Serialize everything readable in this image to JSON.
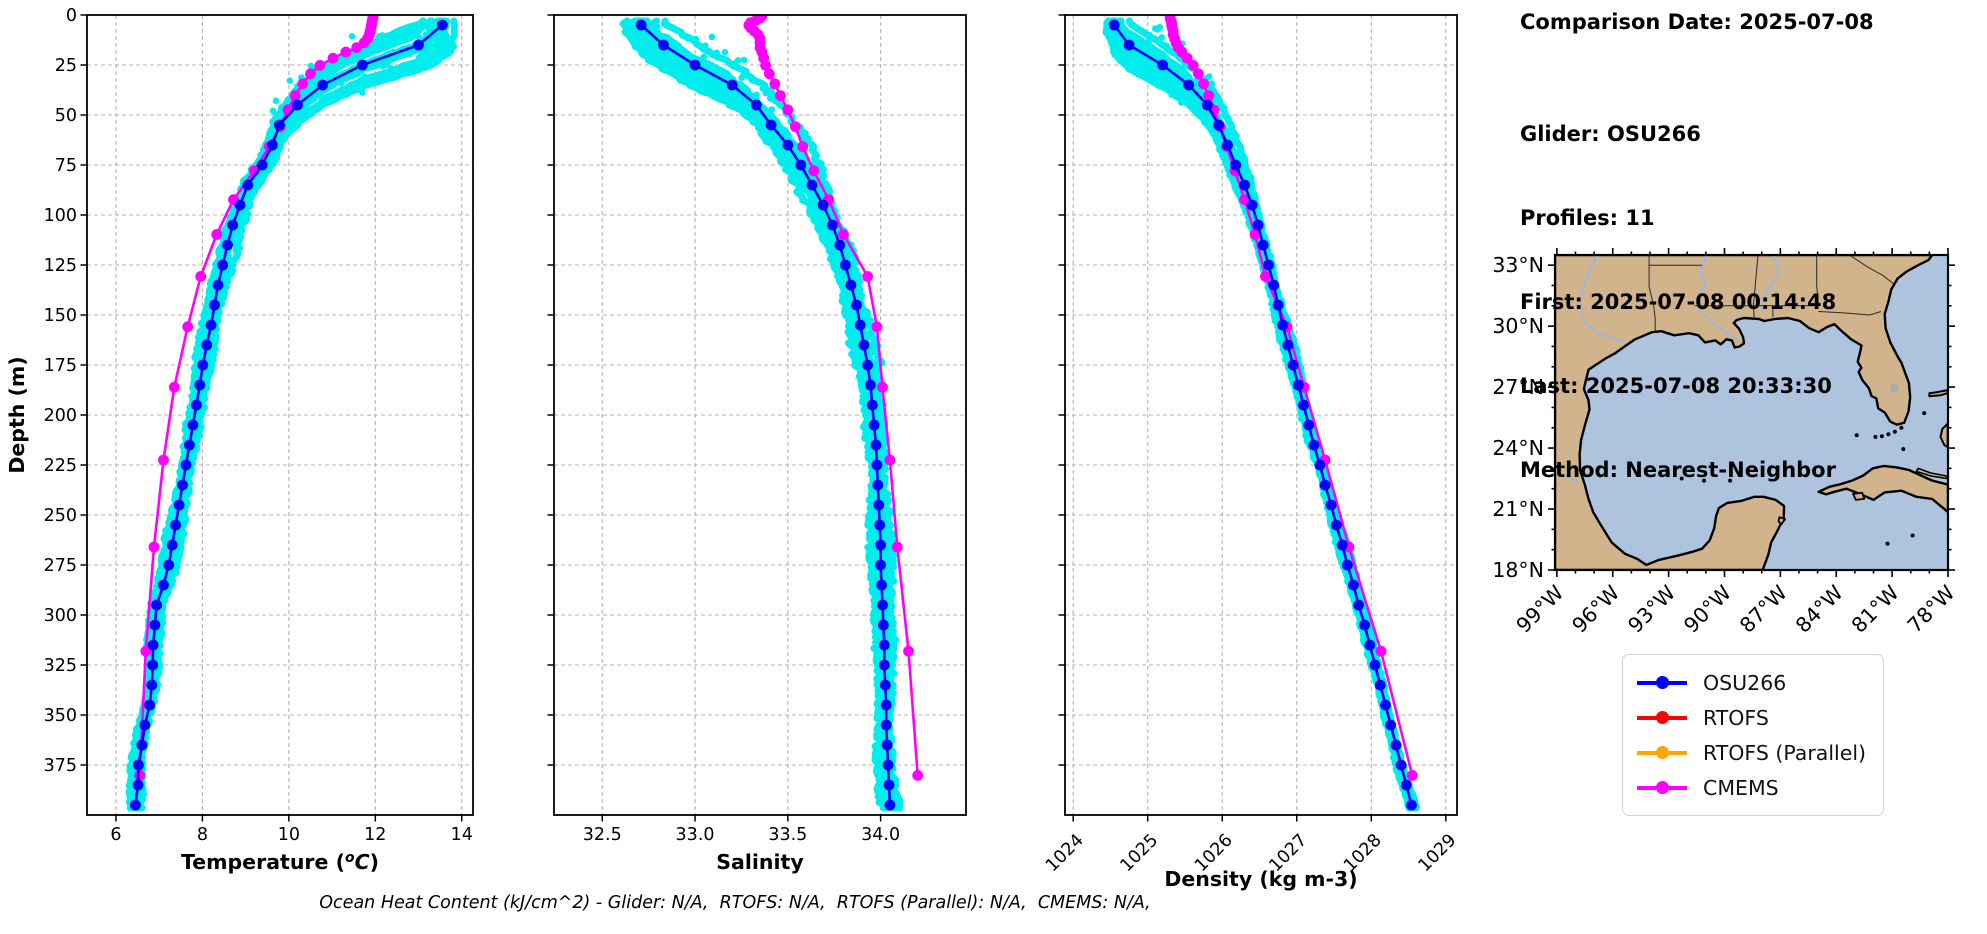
{
  "info_panel": {
    "title": "Comparison Date: 2025-07-08",
    "lines": [
      "Glider: OSU266",
      "Profiles: 11",
      "First: 2025-07-08 00:14:48",
      "Last: 2025-07-08 20:33:30",
      "Method: Nearest-Neighbor"
    ]
  },
  "caption": "Ocean Heat Content (kJ/cm^2) - Glider: N/A,  RTOFS: N/A,  RTOFS (Parallel): N/A,  CMEMS: N/A,",
  "legend": {
    "items": [
      {
        "label": "OSU266",
        "color": "#0000ff"
      },
      {
        "label": "RTOFS",
        "color": "#ff0000"
      },
      {
        "label": "RTOFS (Parallel)",
        "color": "#ffa500"
      },
      {
        "label": "CMEMS",
        "color": "#ff00ff"
      }
    ]
  },
  "colors": {
    "glider_line": "#0000ff",
    "cmems_line": "#ff00ff",
    "raw_scatter": "#00eded",
    "grid": "#b3b3b3",
    "frame": "#000000"
  },
  "chart_data": [
    {
      "type": "scatter",
      "title": "",
      "xlabel": "Temperature (°C)",
      "xlabel_render": {
        "prefix": "Temperature (",
        "sup": "o",
        "italic": "C",
        "suffix": ")"
      },
      "ylabel": "Depth (m)",
      "xlim": [
        5.33,
        14.26
      ],
      "ylim": [
        0,
        400
      ],
      "y_inverted": true,
      "grid": true,
      "xticks": [
        6,
        8,
        10,
        12,
        14
      ],
      "xtick_labels": [
        "6",
        "8",
        "10",
        "12",
        "14"
      ],
      "yticks": [
        0,
        25,
        50,
        75,
        100,
        125,
        150,
        175,
        200,
        225,
        250,
        275,
        300,
        325,
        350,
        375
      ],
      "show_ytick_labels": true,
      "xtick_rotation": 0,
      "series": [
        {
          "name": "OSU266 (binned)",
          "color": "#0000ff",
          "marker": true,
          "depths": [
            5,
            15,
            25,
            35,
            45,
            55,
            65,
            75,
            85,
            95,
            105,
            115,
            125,
            135,
            145,
            155,
            165,
            175,
            185,
            195,
            205,
            215,
            225,
            235,
            245,
            255,
            265,
            275,
            285,
            295,
            305,
            315,
            325,
            335,
            345,
            355,
            365,
            375,
            385,
            395
          ],
          "values": [
            13.55,
            13.0,
            11.7,
            10.78,
            10.2,
            9.78,
            9.62,
            9.38,
            9.05,
            8.87,
            8.7,
            8.58,
            8.47,
            8.36,
            8.28,
            8.2,
            8.1,
            8.01,
            7.94,
            7.86,
            7.78,
            7.7,
            7.62,
            7.54,
            7.46,
            7.38,
            7.3,
            7.22,
            7.1,
            6.94,
            6.9,
            6.86,
            6.85,
            6.83,
            6.78,
            6.67,
            6.6,
            6.52,
            6.51,
            6.45
          ]
        },
        {
          "name": "CMEMS",
          "color": "#ff00ff",
          "marker": true,
          "depths": [
            0.5,
            1.5,
            2.6,
            3.8,
            5.1,
            6.4,
            8.1,
            9.8,
            11.8,
            13.9,
            16.3,
            18.5,
            21.6,
            25.2,
            29.4,
            34.4,
            40.3,
            47.4,
            55.8,
            65.8,
            77.9,
            92.3,
            109.7,
            130.7,
            155.9,
            186.1,
            222.5,
            266.0,
            318.1,
            380.2
          ],
          "values": [
            11.95,
            11.94,
            11.93,
            11.92,
            11.91,
            11.9,
            11.88,
            11.86,
            11.82,
            11.74,
            11.57,
            11.32,
            11.02,
            10.72,
            10.5,
            10.32,
            10.15,
            9.98,
            9.8,
            9.55,
            9.2,
            8.72,
            8.33,
            7.96,
            7.66,
            7.35,
            7.1,
            6.88,
            6.69,
            6.55
          ]
        },
        {
          "name": "Glider raw scatter",
          "color": "#00eded",
          "marker": false,
          "derived_from": "OSU266 (binned)",
          "profiles": 11,
          "jitter_wiggle": 0.14,
          "jitter_bias": 0.16,
          "stray_dots": 64
        }
      ]
    },
    {
      "type": "scatter",
      "title": "",
      "xlabel": "Salinity",
      "ylabel": "",
      "xlim": [
        32.24,
        34.46
      ],
      "ylim": [
        0,
        400
      ],
      "y_inverted": true,
      "grid": true,
      "xticks": [
        32.5,
        33.0,
        33.5,
        34.0
      ],
      "xtick_labels": [
        "32.5",
        "33.0",
        "33.5",
        "34.0"
      ],
      "yticks": [
        0,
        25,
        50,
        75,
        100,
        125,
        150,
        175,
        200,
        225,
        250,
        275,
        300,
        325,
        350,
        375
      ],
      "show_ytick_labels": false,
      "xtick_rotation": 0,
      "series": [
        {
          "name": "OSU266 (binned)",
          "color": "#0000ff",
          "marker": true,
          "depths": [
            5,
            15,
            25,
            35,
            45,
            55,
            65,
            75,
            85,
            95,
            105,
            115,
            125,
            135,
            145,
            155,
            165,
            175,
            185,
            195,
            205,
            215,
            225,
            235,
            245,
            255,
            265,
            275,
            285,
            295,
            305,
            315,
            325,
            335,
            345,
            355,
            365,
            375,
            385,
            395
          ],
          "values": [
            32.71,
            32.83,
            33.0,
            33.2,
            33.33,
            33.41,
            33.5,
            33.57,
            33.63,
            33.69,
            33.74,
            33.78,
            33.81,
            33.84,
            33.87,
            33.89,
            33.91,
            33.93,
            33.945,
            33.955,
            33.965,
            33.975,
            33.98,
            33.985,
            33.99,
            33.995,
            34.0,
            34.0,
            34.005,
            34.01,
            34.015,
            34.02,
            34.02,
            34.025,
            34.03,
            34.03,
            34.035,
            34.04,
            34.045,
            34.05
          ]
        },
        {
          "name": "CMEMS",
          "color": "#ff00ff",
          "marker": true,
          "depths": [
            0.5,
            1.5,
            2.6,
            3.8,
            5.1,
            6.4,
            8.1,
            9.8,
            11.8,
            13.9,
            16.3,
            18.5,
            21.6,
            25.2,
            29.4,
            34.4,
            40.3,
            47.4,
            55.8,
            65.8,
            77.9,
            92.3,
            109.7,
            130.7,
            155.9,
            186.1,
            222.5,
            266.0,
            318.1,
            380.2
          ],
          "values": [
            33.36,
            33.35,
            33.33,
            33.3,
            33.29,
            33.3,
            33.32,
            33.34,
            33.35,
            33.35,
            33.35,
            33.36,
            33.37,
            33.38,
            33.4,
            33.43,
            33.46,
            33.5,
            33.54,
            33.58,
            33.64,
            33.72,
            33.8,
            33.93,
            33.98,
            34.01,
            34.05,
            34.09,
            34.15,
            34.2
          ]
        },
        {
          "name": "Glider raw scatter",
          "color": "#00eded",
          "marker": false,
          "derived_from": "OSU266 (binned)",
          "profiles": 11,
          "jitter_wiggle": 0.045,
          "jitter_bias": 0.05,
          "stray_dots": 55
        }
      ]
    },
    {
      "type": "scatter",
      "title": "",
      "xlabel": "Density (kg m-3)",
      "ylabel": "",
      "xlim": [
        1023.89,
        1029.15
      ],
      "ylim": [
        0,
        400
      ],
      "y_inverted": true,
      "grid": true,
      "xticks": [
        1024,
        1025,
        1026,
        1027,
        1028,
        1029
      ],
      "xtick_labels": [
        "1024",
        "1025",
        "1026",
        "1027",
        "1028",
        "1029"
      ],
      "yticks": [
        0,
        25,
        50,
        75,
        100,
        125,
        150,
        175,
        200,
        225,
        250,
        275,
        300,
        325,
        350,
        375
      ],
      "show_ytick_labels": false,
      "xtick_rotation": 45,
      "series": [
        {
          "name": "OSU266 (binned)",
          "color": "#0000ff",
          "marker": true,
          "depths": [
            5,
            15,
            25,
            35,
            45,
            55,
            65,
            75,
            85,
            95,
            105,
            115,
            125,
            135,
            145,
            155,
            165,
            175,
            185,
            195,
            205,
            215,
            225,
            235,
            245,
            255,
            265,
            275,
            285,
            295,
            305,
            315,
            325,
            335,
            345,
            355,
            365,
            375,
            385,
            395
          ],
          "values": [
            1024.55,
            1024.75,
            1025.2,
            1025.55,
            1025.8,
            1025.95,
            1026.07,
            1026.18,
            1026.3,
            1026.4,
            1026.48,
            1026.55,
            1026.62,
            1026.69,
            1026.75,
            1026.81,
            1026.88,
            1026.95,
            1027.02,
            1027.09,
            1027.16,
            1027.23,
            1027.31,
            1027.38,
            1027.46,
            1027.53,
            1027.61,
            1027.68,
            1027.76,
            1027.83,
            1027.91,
            1027.98,
            1028.05,
            1028.12,
            1028.19,
            1028.26,
            1028.33,
            1028.4,
            1028.47,
            1028.54
          ]
        },
        {
          "name": "CMEMS",
          "color": "#ff00ff",
          "marker": true,
          "depths": [
            0.5,
            1.5,
            2.6,
            3.8,
            5.1,
            6.4,
            8.1,
            9.8,
            11.8,
            13.9,
            16.3,
            18.5,
            21.6,
            25.2,
            29.4,
            34.4,
            40.3,
            47.4,
            55.8,
            65.8,
            77.9,
            92.3,
            109.7,
            130.7,
            155.9,
            186.1,
            222.5,
            266.0,
            318.1,
            380.2
          ],
          "values": [
            1025.3,
            1025.3,
            1025.31,
            1025.32,
            1025.32,
            1025.33,
            1025.34,
            1025.34,
            1025.36,
            1025.38,
            1025.41,
            1025.46,
            1025.53,
            1025.61,
            1025.68,
            1025.75,
            1025.82,
            1025.89,
            1025.97,
            1026.06,
            1026.17,
            1026.3,
            1026.44,
            1026.58,
            1026.87,
            1027.1,
            1027.38,
            1027.7,
            1028.13,
            1028.55
          ]
        },
        {
          "name": "Glider raw scatter",
          "color": "#00eded",
          "marker": false,
          "derived_from": "OSU266 (binned)",
          "profiles": 11,
          "jitter_wiggle": 0.05,
          "jitter_bias": 0.055,
          "stray_dots": 55
        }
      ]
    }
  ],
  "map": {
    "region": "Gulf of Mexico",
    "extent": {
      "lon_min": -99.1,
      "lon_max": -78.0,
      "lat_min": 18.0,
      "lat_max": 33.5
    },
    "lat_tick_values": [
      33,
      30,
      27,
      24,
      21,
      18
    ],
    "lat_tick_labels": [
      "33°N",
      "30°N",
      "27°N",
      "24°N",
      "21°N",
      "18°N"
    ],
    "lon_tick_values": [
      -99,
      -96,
      -93,
      -90,
      -87,
      -84,
      -81,
      -78
    ],
    "lon_tick_labels": [
      "99°W",
      "96°W",
      "93°W",
      "90°W",
      "87°W",
      "84°W",
      "81°W",
      "78°W"
    ],
    "colors": {
      "land": "#d2b48c",
      "water": "#aec4de",
      "coast": "#000000",
      "state_border": "#2a2a2a",
      "river": "#97b6e1",
      "lake": "#ababab"
    }
  }
}
